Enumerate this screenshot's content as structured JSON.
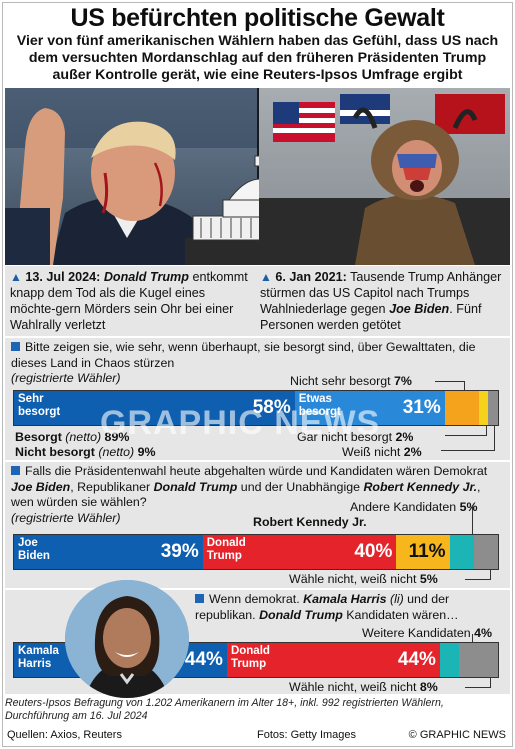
{
  "header": {
    "title": "US befürchten politische Gewalt",
    "subtitle": "Vier von fünf amerikanischen Wählern haben das Gefühl, dass US nach dem versuchten Mordanschlag auf den früheren Präsidenten Trump außer Kontrolle gerät, wie eine Reuters-Ipsos Umfrage ergibt"
  },
  "captions": {
    "left": {
      "date": "13. Jul 2024:",
      "name": "Donald Trump",
      "text": "entkommt knapp dem Tod als die Kugel eines möchte-gern Mörders sein Ohr bei einer Wahlrally verletzt"
    },
    "right": {
      "date": "6. Jan 2021:",
      "text1": "Tausende Trump Anhänger stürmen das US Capitol nach Trumps Wahlniederlage gegen",
      "name": "Joe Biden",
      "text2": ". Fünf Personen werden getötet"
    }
  },
  "q1": {
    "question": "Bitte zeigen sie, wie sehr, wenn überhaupt, sie besorgt sind, über Gewalttaten, die dieses Land in Chaos stürzen",
    "note": "(registrierte Wähler)",
    "net_besorgt_label": "Besorgt",
    "net_besorgt_note": "(netto)",
    "net_besorgt_value": "89%",
    "net_nicht_label": "Nicht besorgt",
    "net_nicht_note": "(netto)",
    "net_nicht_value": "9%",
    "nicht_sehr_label": "Nicht sehr besorgt",
    "gar_nicht_label": "Gar nicht besorgt",
    "weiss_nicht_label": "Weiß nicht"
  },
  "q2": {
    "question_pre": "Falls die Präsidentenwahl heute abgehalten würde und Kandidaten wären Demokrat",
    "biden": "Joe Biden",
    "mid1": ", Republikaner",
    "trump": "Donald Trump",
    "mid2": "und der Unabhängige",
    "kennedy": "Robert Kennedy Jr.",
    "question_post": ", wen würden sie wählen?",
    "note": "(registrierte Wähler)",
    "andere_label": "Andere Kandidaten",
    "kennedy_label": "Robert Kennedy Jr.",
    "waehle_label": "Wähle nicht, weiß nicht"
  },
  "q3": {
    "q_pre": "Wenn demokrat.",
    "harris": "Kamala Harris",
    "li": "(li)",
    "q_mid": "und der republikan.",
    "trump": "Donald Trump",
    "q_post": "Kandidaten wären…",
    "weitere_label": "Weitere Kandidaten",
    "waehle_label": "Wähle nicht, weiß nicht"
  },
  "footer": {
    "method": "Reuters-Ipsos Befragung von 1.202 Amerikanern im Alter 18+, inkl.  992 registrierten Wählern, Durchführung am 16. Jul 2024",
    "sources": "Quellen: Axios, Reuters",
    "photos": "Fotos: Getty Images",
    "brand": "© GRAPHIC NEWS",
    "watermark": "GRAPHIC NEWS"
  },
  "colors": {
    "dark_blue": "#0f5fb0",
    "mid_blue": "#2a88d8",
    "red": "#e5232b",
    "orange": "#f5a31c",
    "yellow": "#f7c51c",
    "teal": "#1bb5b5",
    "grey": "#8d8d8d",
    "panel": "#e6e6e6",
    "accent_blue": "#1c64b4"
  },
  "chart_data": [
    {
      "type": "bar",
      "title": "Bitte zeigen sie, wie sehr, wenn überhaupt, sie besorgt sind, über Gewalttaten, die dieses Land in Chaos stürzen",
      "stacked": true,
      "series": [
        {
          "name": "Sehr besorgt",
          "value": 58,
          "label": "58%"
        },
        {
          "name": "Etwas besorgt",
          "value": 31,
          "label": "31%"
        },
        {
          "name": "Nicht sehr besorgt",
          "value": 7,
          "label": "7%"
        },
        {
          "name": "Gar nicht besorgt",
          "value": 2,
          "label": "2%"
        },
        {
          "name": "Weiß nicht",
          "value": 2,
          "label": "2%"
        }
      ]
    },
    {
      "type": "bar",
      "title": "Falls die Präsidentenwahl heute abgehalten würde …, wen würden sie wählen?",
      "stacked": true,
      "series": [
        {
          "name": "Joe Biden",
          "value": 39,
          "label": "39%"
        },
        {
          "name": "Donald Trump",
          "value": 40,
          "label": "40%"
        },
        {
          "name": "Robert Kennedy Jr.",
          "value": 11,
          "label": "11%"
        },
        {
          "name": "Andere Kandidaten",
          "value": 5,
          "label": "5%"
        },
        {
          "name": "Wähle nicht, weiß nicht",
          "value": 5,
          "label": "5%"
        }
      ]
    },
    {
      "type": "bar",
      "title": "Wenn demokrat. Kamala Harris (li) und der republikan. Donald Trump Kandidaten wären…",
      "stacked": true,
      "series": [
        {
          "name": "Kamala Harris",
          "value": 44,
          "label": "44%"
        },
        {
          "name": "Donald Trump",
          "value": 44,
          "label": "44%"
        },
        {
          "name": "Weitere Kandidaten",
          "value": 4,
          "label": "4%"
        },
        {
          "name": "Wähle nicht, weiß nicht",
          "value": 8,
          "label": "8%"
        }
      ]
    }
  ]
}
